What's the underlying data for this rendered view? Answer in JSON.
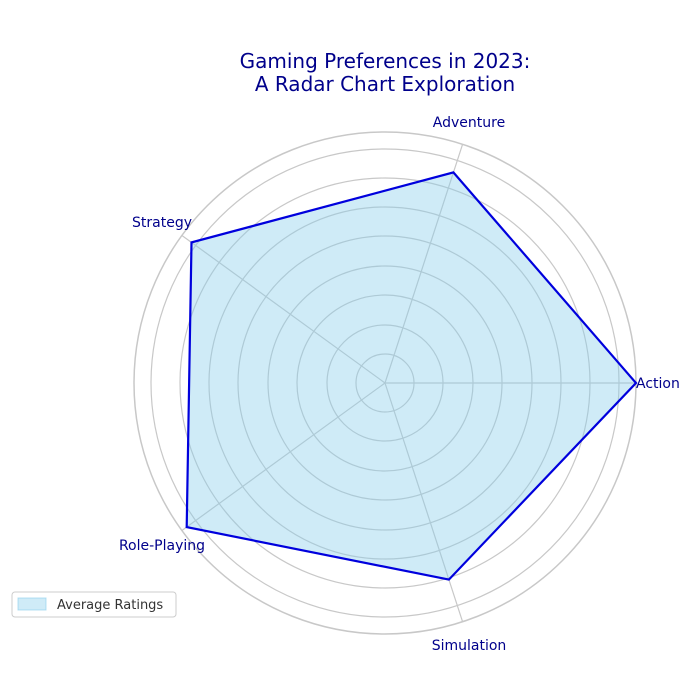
{
  "chart_data": {
    "type": "radar",
    "title": "Gaming Preferences in 2023:\nA Radar Chart Exploration",
    "categories": [
      "Action",
      "Adventure",
      "Simulation",
      "Role-Playing",
      "Strategy"
    ],
    "series": [
      {
        "name": "Average Ratings",
        "values": [
          8.5,
          7.5,
          7.0,
          8.3,
          8.1
        ]
      }
    ],
    "axis_order_display": [
      "Action",
      "Adventure",
      "Strategy",
      "Role-Playing",
      "Simulation"
    ],
    "display_values": [
      8.5,
      7.5,
      8.1,
      8.3,
      7.0
    ],
    "rmax": 8.5,
    "grid": true,
    "legend_position": "bottom-left",
    "colors": {
      "line": "#0000dd",
      "fill": "#87ceeb",
      "title": "#00008b",
      "labels": "#00008b",
      "grid": "#c8c8c8"
    }
  }
}
